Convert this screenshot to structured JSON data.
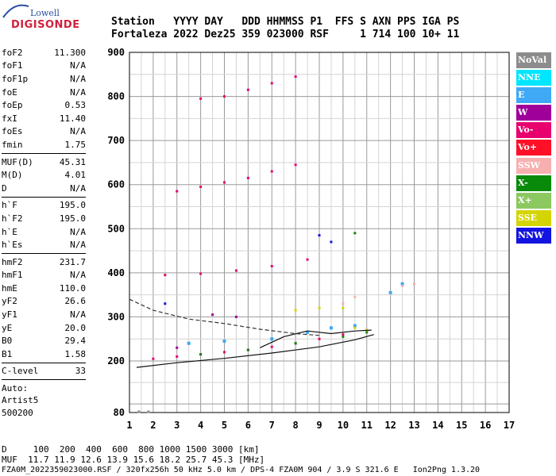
{
  "logo": {
    "line1": "Lowell",
    "line2": "DIGISONDE"
  },
  "header": {
    "line1": "Station   YYYY DAY   DDD HHMMSS P1  FFS S AXN PPS IGA PS",
    "line2": "Fortaleza 2022 Dez25 359 023000 RSF     1 714 100 10+ 11"
  },
  "params": {
    "group1": [
      {
        "label": "foF2",
        "value": "11.300"
      },
      {
        "label": "foF1",
        "value": "N/A"
      },
      {
        "label": "foF1p",
        "value": "N/A"
      },
      {
        "label": "foE",
        "value": "N/A"
      },
      {
        "label": "foEp",
        "value": "0.53"
      },
      {
        "label": "fxI",
        "value": "11.40"
      },
      {
        "label": "foEs",
        "value": "N/A"
      },
      {
        "label": "fmin",
        "value": "1.75"
      }
    ],
    "group2": [
      {
        "label": "MUF(D)",
        "value": "45.31"
      },
      {
        "label": "M(D)",
        "value": "4.01"
      },
      {
        "label": "D",
        "value": "N/A"
      }
    ],
    "group3": [
      {
        "label": "h`F",
        "value": "195.0"
      },
      {
        "label": "h`F2",
        "value": "195.0"
      },
      {
        "label": "h`E",
        "value": "N/A"
      },
      {
        "label": "h`Es",
        "value": "N/A"
      }
    ],
    "group4": [
      {
        "label": "hmF2",
        "value": "231.7"
      },
      {
        "label": "hmF1",
        "value": "N/A"
      },
      {
        "label": "hmE",
        "value": "110.0"
      },
      {
        "label": "yF2",
        "value": "26.6"
      },
      {
        "label": "yF1",
        "value": "N/A"
      },
      {
        "label": "yE",
        "value": "20.0"
      },
      {
        "label": "B0",
        "value": "29.4"
      },
      {
        "label": "B1",
        "value": "1.58"
      }
    ],
    "group5": [
      {
        "label": "C-level",
        "value": "33"
      }
    ],
    "auto": [
      "Auto:",
      "Artist5",
      "500200"
    ]
  },
  "legend": [
    {
      "label": "NoVal",
      "color": "#8c8c8c"
    },
    {
      "label": "NNE",
      "color": "#00e6ff"
    },
    {
      "label": "E",
      "color": "#3fa9f5"
    },
    {
      "label": "W",
      "color": "#a0009a"
    },
    {
      "label": "Vo-",
      "color": "#e8006e"
    },
    {
      "label": "Vo+",
      "color": "#ff1028"
    },
    {
      "label": "SSW",
      "color": "#f7b0b0"
    },
    {
      "label": "X-",
      "color": "#0a8a0a"
    },
    {
      "label": "X+",
      "color": "#8cc860"
    },
    {
      "label": "SSE",
      "color": "#d4d400"
    },
    {
      "label": "NNW",
      "color": "#1414e0"
    }
  ],
  "footer": {
    "line1": "D     100  200  400  600  800 1000 1500 3000 [km]",
    "line2": "MUF  11.7 11.9 12.6 13.9 15.6 18.2 25.7 45.3 [MHz]",
    "line3": "FZA0M_2022359023000.RSF / 320fx256h 50 kHz 5.0 km / DPS-4 FZA0M 904 / 3.9 S 321.6 E   Ion2Png 1.3.20"
  },
  "chart_data": {
    "type": "scatter",
    "title": "",
    "xlabel": "",
    "ylabel": "",
    "xlim": [
      1,
      17
    ],
    "ylim": [
      80,
      900
    ],
    "x_ticks": [
      1,
      2,
      3,
      4,
      5,
      6,
      7,
      8,
      9,
      10,
      11,
      12,
      13,
      14,
      15,
      16,
      17
    ],
    "y_ticks": [
      80,
      200,
      300,
      400,
      500,
      600,
      700,
      800,
      900
    ],
    "grid": true,
    "legend_position": "right",
    "series": [
      {
        "name": "NoVal",
        "points": [
          [
            1.4,
            82
          ],
          [
            1.8,
            82
          ]
        ]
      },
      {
        "name": "Vo-",
        "points": [
          [
            2.0,
            205
          ],
          [
            3.0,
            210
          ],
          [
            4.0,
            215
          ],
          [
            5.0,
            220
          ],
          [
            6.0,
            225
          ],
          [
            7.0,
            232
          ],
          [
            8.0,
            240
          ],
          [
            9.0,
            250
          ],
          [
            10.0,
            260
          ],
          [
            11.0,
            270
          ],
          [
            2.5,
            395
          ],
          [
            4.0,
            398
          ],
          [
            5.5,
            405
          ],
          [
            7.0,
            415
          ],
          [
            8.5,
            430
          ],
          [
            3.0,
            585
          ],
          [
            4.0,
            595
          ],
          [
            5.0,
            605
          ],
          [
            6.0,
            615
          ],
          [
            7.0,
            630
          ],
          [
            8.0,
            645
          ],
          [
            4.0,
            795
          ],
          [
            5.0,
            800
          ],
          [
            6.0,
            815
          ],
          [
            7.0,
            830
          ],
          [
            8.0,
            845
          ]
        ]
      },
      {
        "name": "E",
        "points": [
          [
            3.5,
            240
          ],
          [
            5.0,
            245
          ],
          [
            7.0,
            250
          ],
          [
            8.5,
            265
          ],
          [
            9.5,
            275
          ],
          [
            10.5,
            280
          ],
          [
            12.0,
            355
          ],
          [
            12.5,
            375
          ]
        ]
      },
      {
        "name": "X-",
        "points": [
          [
            4.0,
            215
          ],
          [
            6.0,
            225
          ],
          [
            8.0,
            240
          ],
          [
            10.0,
            255
          ],
          [
            11.0,
            265
          ],
          [
            10.5,
            490
          ]
        ]
      },
      {
        "name": "SSE",
        "points": [
          [
            8.0,
            315
          ],
          [
            9.0,
            320
          ],
          [
            10.0,
            320
          ],
          [
            10.5,
            275
          ],
          [
            11.0,
            270
          ]
        ]
      },
      {
        "name": "SSW",
        "points": [
          [
            10.0,
            330
          ],
          [
            10.5,
            345
          ],
          [
            12.5,
            370
          ],
          [
            13.0,
            375
          ]
        ]
      },
      {
        "name": "NNW",
        "points": [
          [
            9.0,
            485
          ],
          [
            9.5,
            470
          ],
          [
            2.5,
            330
          ]
        ]
      },
      {
        "name": "W",
        "points": [
          [
            4.5,
            305
          ],
          [
            5.5,
            300
          ],
          [
            3.0,
            230
          ]
        ]
      }
    ],
    "lines": [
      {
        "style": "solid",
        "points": [
          [
            1.3,
            185
          ],
          [
            3.0,
            196
          ],
          [
            5.0,
            206
          ],
          [
            7.0,
            218
          ],
          [
            9.0,
            232
          ],
          [
            10.5,
            248
          ],
          [
            11.3,
            260
          ]
        ]
      },
      {
        "style": "solid",
        "points": [
          [
            6.5,
            230
          ],
          [
            7.5,
            255
          ],
          [
            8.5,
            268
          ],
          [
            9.5,
            262
          ],
          [
            10.5,
            268
          ],
          [
            11.2,
            270
          ]
        ]
      },
      {
        "style": "dashed",
        "points": [
          [
            1.0,
            340
          ],
          [
            2.0,
            315
          ],
          [
            3.5,
            295
          ],
          [
            5.0,
            285
          ],
          [
            6.5,
            272
          ],
          [
            8.0,
            262
          ],
          [
            9.0,
            258
          ]
        ]
      }
    ]
  }
}
